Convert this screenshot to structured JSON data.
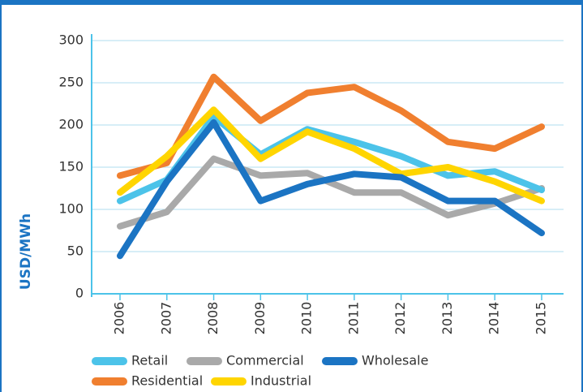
{
  "chart_data": {
    "type": "line",
    "y_label": "USD/MWh",
    "categories": [
      "2006",
      "2007",
      "2008",
      "2009",
      "2010",
      "2011",
      "2012",
      "2013",
      "2014",
      "2015"
    ],
    "ylim": [
      0,
      300
    ],
    "yticks": [
      0,
      50,
      100,
      150,
      200,
      250,
      300
    ],
    "grid": true,
    "legend": "bottom-left",
    "series": [
      {
        "name": "Retail",
        "color": "#4cc3e9",
        "values": [
          110,
          135,
          210,
          165,
          195,
          180,
          163,
          140,
          145,
          123
        ]
      },
      {
        "name": "Commercial",
        "color": "#a9a9a9",
        "values": [
          80,
          97,
          160,
          140,
          143,
          120,
          120,
          93,
          107,
          125
        ]
      },
      {
        "name": "Wholesale",
        "color": "#1b74c3",
        "values": [
          45,
          133,
          203,
          110,
          130,
          142,
          138,
          110,
          110,
          72
        ]
      },
      {
        "name": "Residential",
        "color": "#f07f2f",
        "values": [
          140,
          155,
          257,
          205,
          238,
          245,
          217,
          180,
          172,
          198
        ]
      },
      {
        "name": "Industrial",
        "color": "#ffd500",
        "values": [
          120,
          163,
          218,
          160,
          192,
          172,
          142,
          150,
          133,
          110
        ]
      }
    ]
  }
}
